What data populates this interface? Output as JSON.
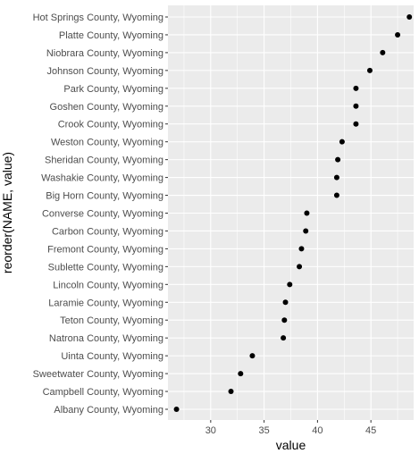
{
  "chart_data": {
    "type": "scatter",
    "title": "",
    "xlabel": "value",
    "ylabel": "reorder(NAME, value)",
    "xlim": [
      26.0,
      49.0
    ],
    "xticks": [
      30,
      35,
      40,
      45
    ],
    "xtick_labels": [
      "30",
      "35",
      "40",
      "45"
    ],
    "grid": true,
    "panel_background": "#EBEBEB",
    "grid_color": "#FFFFFF",
    "point_color": "#000000",
    "points": [
      {
        "name": "Hot Springs County, Wyoming",
        "value": 48.6
      },
      {
        "name": "Platte County, Wyoming",
        "value": 47.5
      },
      {
        "name": "Niobrara County, Wyoming",
        "value": 46.1
      },
      {
        "name": "Johnson County, Wyoming",
        "value": 44.9
      },
      {
        "name": "Park County, Wyoming",
        "value": 43.6
      },
      {
        "name": "Goshen County, Wyoming",
        "value": 43.6
      },
      {
        "name": "Crook County, Wyoming",
        "value": 43.6
      },
      {
        "name": "Weston County, Wyoming",
        "value": 42.3
      },
      {
        "name": "Sheridan County, Wyoming",
        "value": 41.9
      },
      {
        "name": "Washakie County, Wyoming",
        "value": 41.8
      },
      {
        "name": "Big Horn County, Wyoming",
        "value": 41.8
      },
      {
        "name": "Converse County, Wyoming",
        "value": 39.0
      },
      {
        "name": "Carbon County, Wyoming",
        "value": 38.9
      },
      {
        "name": "Fremont County, Wyoming",
        "value": 38.5
      },
      {
        "name": "Sublette County, Wyoming",
        "value": 38.3
      },
      {
        "name": "Lincoln County, Wyoming",
        "value": 37.4
      },
      {
        "name": "Laramie County, Wyoming",
        "value": 37.0
      },
      {
        "name": "Teton County, Wyoming",
        "value": 36.9
      },
      {
        "name": "Natrona County, Wyoming",
        "value": 36.8
      },
      {
        "name": "Uinta County, Wyoming",
        "value": 33.9
      },
      {
        "name": "Sweetwater County, Wyoming",
        "value": 32.8
      },
      {
        "name": "Campbell County, Wyoming",
        "value": 31.9
      },
      {
        "name": "Albany County, Wyoming",
        "value": 26.8
      }
    ]
  }
}
